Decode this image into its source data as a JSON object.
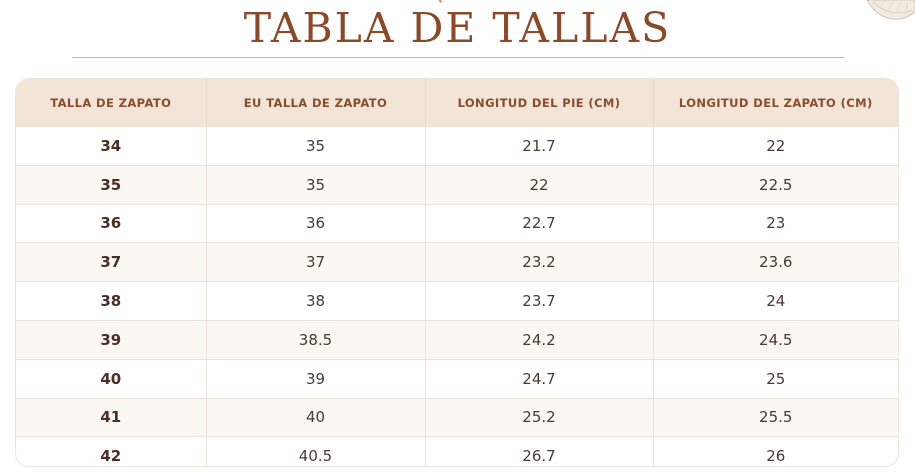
{
  "title": "TABLA DE TALLAS",
  "table": {
    "headers": [
      "TALLA DE ZAPATO",
      "EU TALLA DE ZAPATO",
      "LONGITUD DEL PIE (CM)",
      "LONGITUD DEL ZAPATO (CM)"
    ],
    "rows": [
      [
        "34",
        "35",
        "21.7",
        "22"
      ],
      [
        "35",
        "35",
        "22",
        "22.5"
      ],
      [
        "36",
        "36",
        "22.7",
        "23"
      ],
      [
        "37",
        "37",
        "23.2",
        "23.6"
      ],
      [
        "38",
        "38",
        "23.7",
        "24"
      ],
      [
        "39",
        "38.5",
        "24.2",
        "24.5"
      ],
      [
        "40",
        "39",
        "24.7",
        "25"
      ],
      [
        "41",
        "40",
        "25.2",
        "25.5"
      ],
      [
        "42",
        "40.5",
        "26.7",
        "26"
      ]
    ]
  },
  "colors": {
    "title": "#8a4a2a",
    "header_bg": "#f2e5d8",
    "header_text": "#8a4c2c",
    "stripe_bg": "#fbf7f3",
    "cell_text": "#4a3a33"
  },
  "icons": {
    "corner_decoration": "leaf-icon",
    "title_ornament": "sparkle-icon"
  }
}
